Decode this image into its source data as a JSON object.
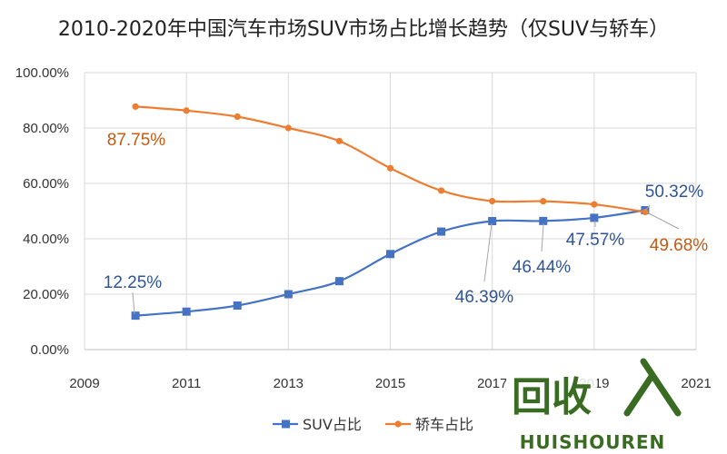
{
  "chart_data": {
    "type": "line",
    "title": "2010-2020年中国汽车市场SUV市场占比增长趋势（仅SUV与轿车）",
    "xlabel": "",
    "ylabel": "",
    "xlim": [
      2009,
      2021
    ],
    "ylim": [
      0,
      100
    ],
    "x_ticks": [
      "2009",
      "2011",
      "2013",
      "2015",
      "2017",
      "2019",
      "2021"
    ],
    "y_ticks": [
      "0.00%",
      "20.00%",
      "40.00%",
      "60.00%",
      "80.00%",
      "100.00%"
    ],
    "x": [
      2010,
      2011,
      2012,
      2013,
      2014,
      2015,
      2016,
      2017,
      2018,
      2019,
      2020
    ],
    "grid": true,
    "legend": "bottom",
    "series": [
      {
        "name": "SUV占比",
        "color": "#4472C4",
        "marker": "square",
        "values": [
          12.25,
          13.7,
          15.9,
          20.0,
          24.7,
          34.5,
          42.6,
          46.39,
          46.44,
          47.57,
          50.32
        ]
      },
      {
        "name": "轿车占比",
        "color": "#ED7D31",
        "marker": "circle",
        "values": [
          87.75,
          86.3,
          84.1,
          80.0,
          75.3,
          65.5,
          57.4,
          53.61,
          53.56,
          52.43,
          49.68
        ]
      }
    ],
    "annotations": [
      {
        "text": "87.75%",
        "series": 1,
        "index": 0,
        "color": "#C55A11"
      },
      {
        "text": "12.25%",
        "series": 0,
        "index": 0,
        "color": "#2F5597"
      },
      {
        "text": "46.39%",
        "series": 0,
        "index": 7,
        "color": "#2F5597"
      },
      {
        "text": "46.44%",
        "series": 0,
        "index": 8,
        "color": "#2F5597"
      },
      {
        "text": "47.57%",
        "series": 0,
        "index": 9,
        "color": "#2F5597"
      },
      {
        "text": "50.32%",
        "series": 0,
        "index": 10,
        "color": "#2F5597"
      },
      {
        "text": "49.68%",
        "series": 1,
        "index": 10,
        "color": "#C55A11"
      }
    ]
  },
  "watermark": {
    "brand": "回收",
    "site": "HUISHOUREN",
    "color": "#3A6B22"
  }
}
